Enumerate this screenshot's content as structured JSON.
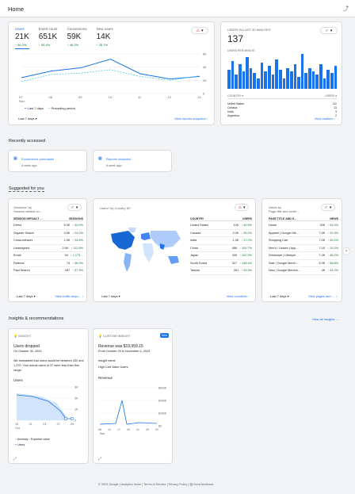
{
  "header": {
    "title": "Home"
  },
  "overview": {
    "metrics": [
      {
        "label": "Users",
        "value": "21K",
        "change": "↑ 36.3%"
      },
      {
        "label": "Event count",
        "value": "651K",
        "change": "↑ 55.4%"
      },
      {
        "label": "Conversions",
        "value": "59K",
        "change": "↑ 46.2%"
      },
      {
        "label": "New users",
        "value": "14K",
        "change": "↑ 35.7%"
      }
    ],
    "y_ticks": [
      "6K",
      "4K",
      "2K",
      "0"
    ],
    "x_ticks": [
      {
        "day": "07",
        "month": "Nov"
      },
      {
        "day": "08"
      },
      {
        "day": "09"
      },
      {
        "day": "10"
      },
      {
        "day": "11"
      },
      {
        "day": "12"
      },
      {
        "day": "13"
      }
    ],
    "legend_last": "Last 7 days",
    "legend_prev": "Preceding period",
    "date_range": "Last 7 days ▾",
    "footer_link": "View reports snapshot ›"
  },
  "chart_data": {
    "type": "line",
    "x": [
      "07 Nov",
      "08",
      "09",
      "10",
      "11",
      "12",
      "13"
    ],
    "series": [
      {
        "name": "Last 7 days",
        "values": [
          2.4,
          3.4,
          3.9,
          5.2,
          3.0,
          2.2,
          2.6
        ]
      },
      {
        "name": "Preceding period",
        "values": [
          1.8,
          2.9,
          3.1,
          3.6,
          2.6,
          2.0,
          2.7
        ]
      }
    ],
    "ylim": [
      0,
      6
    ]
  },
  "realtime": {
    "title": "USERS IN LAST 30 MINUTES",
    "value": "137",
    "per_minute": "USERS PER MINUTE",
    "bars": [
      0.55,
      0.8,
      0.4,
      0.7,
      0.5,
      0.9,
      0.6,
      0.45,
      0.3,
      0.75,
      0.5,
      0.65,
      0.4,
      0.85,
      0.55,
      0.3,
      0.6,
      0.5,
      0.7,
      0.35,
      1.0,
      0.45,
      0.6,
      0.5,
      0.4,
      0.7,
      0.3,
      0.55,
      0.45,
      0.65
    ],
    "col_country": "COUNTRY ▾",
    "col_users": "USERS ▾",
    "rows": [
      {
        "country": "United States",
        "users": "111"
      },
      {
        "country": "Canada",
        "users": "13"
      },
      {
        "country": "India",
        "users": "3"
      },
      {
        "country": "Argentina",
        "users": "2"
      }
    ],
    "footer_link": "View realtime ›"
  },
  "recent": {
    "title": "Recently accessed",
    "items": [
      {
        "label": "Ecommerce purchases",
        "sub": "A week ago"
      },
      {
        "label": "Reports snapshot",
        "sub": "A week ago"
      }
    ]
  },
  "suggested": {
    "title": "Suggested for you",
    "c1": {
      "title": "Sessions* by",
      "title2": "Session default ch…",
      "col1": "SESSION DEFAULT …",
      "col2": "SESSIONS",
      "rows": [
        [
          "Direct",
          "5.3K",
          "↑ 30.0%"
        ],
        [
          "Organic Search",
          "3.5K",
          "↑ 24.0%"
        ],
        [
          "Cross-network",
          "1.5K",
          "↑ 34.8%"
        ],
        [
          "Unassigned",
          "2.0K",
          "↑ 112.8%"
        ],
        [
          "Email",
          "94",
          "↑ 1,173…"
        ],
        [
          "Referral",
          "74",
          "↑ 96.0%"
        ],
        [
          "Paid Search",
          "187",
          "↑ 57.9%"
        ]
      ],
      "date": "Last 7 days ▾",
      "link": "View traffic acqu… ›"
    },
    "c2": {
      "title": "Users* by Country ID*",
      "col1": "COUNTRY",
      "col2": "USERS",
      "rows": [
        [
          "United States",
          "10K",
          "↑ 40.5%"
        ],
        [
          "Canada",
          "2.0K",
          "↑ 28.2%"
        ],
        [
          "India",
          "1.3K",
          "↑ 17.0%"
        ],
        [
          "China",
          "496",
          "↑ 100.7%"
        ],
        [
          "Japan",
          "349",
          "↑ 102.9%"
        ],
        [
          "South Korea",
          "317",
          "↑ 148.4%"
        ],
        [
          "Taiwan",
          "301",
          "↑ 49.3%"
        ]
      ],
      "date": "Last 7 days ▾",
      "link": "View countries ›"
    },
    "c3": {
      "title": "Views by",
      "title2": "Page title and scree…",
      "col1": "PAGE TITLE AND S…",
      "col2": "VIEWS",
      "rows": [
        [
          "Home",
          "30K",
          "↑ 54.0%"
        ],
        [
          "Apparel | Google Me…",
          "7.5K",
          "↑ 92.3%"
        ],
        [
          "Shopping Cart",
          "7.0K",
          "↑ 49.2%"
        ],
        [
          "Men's / Unisex | App…",
          "7.1K",
          "↑ 20.2%"
        ],
        [
          "Drinkware | Lifestyle …",
          "7.4K",
          "↑ 36.2%"
        ],
        [
          "Sale | Google Merch…",
          "5.3K",
          "↑ 58.8%"
        ],
        [
          "New | Google Mercha…",
          "4K",
          "↑ 44.2%"
        ]
      ],
      "date": "Last 7 days ▾",
      "link": "View pages and … ›"
    }
  },
  "insights": {
    "title": "Insights & recommendations",
    "view_all": "View all insights →",
    "i1": {
      "tag": "INSIGHT",
      "title": "Users dropped",
      "date": "On October 30, 2023",
      "body": "We forecasted that users would be between 330 and 1,375. Your actual users of 37 were less than this range.",
      "metric": "Users",
      "y": [
        "3K",
        "2K",
        "1K",
        "0"
      ],
      "x": [
        "15",
        "21",
        "23",
        "27",
        "29"
      ],
      "month": "Oct",
      "legend1": "Anomaly",
      "legend2": "Expected value",
      "legend3": "Users"
    },
    "i2": {
      "tag": "CUSTOM INSIGHT",
      "badge": "New",
      "title": "Revenue was $19,959.15",
      "date": "From October 29 to November 4, 2023",
      "k1": "Insight name",
      "v1": "High Cart Value Users",
      "metric": "Revenue",
      "y": [
        "$600K",
        "$400K",
        "$200K",
        "$0"
      ],
      "x": [
        "08",
        "10",
        "17",
        "26",
        "01",
        "29",
        "02"
      ],
      "month": "Sep"
    }
  },
  "footer": {
    "text": "© 2023 Google | Analytics home | Terms of Service | Privacy Policy |",
    "feedback": "Send feedback"
  }
}
